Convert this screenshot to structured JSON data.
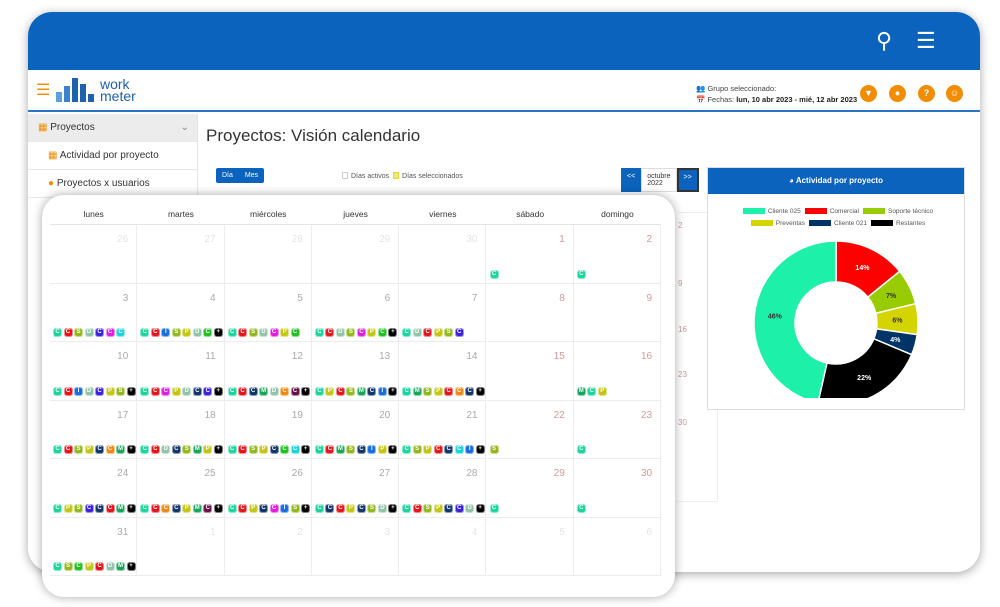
{
  "topbar": {
    "search_icon": "search-icon",
    "menu_icon": "menu-icon"
  },
  "header": {
    "logo_line1": "work",
    "logo_line2": "meter",
    "group_label": "Grupo seleccionado:",
    "dates_label": "Fechas:",
    "dates_value": "lun, 10 abr 2023 - mié, 12 abr 2023"
  },
  "sidebar": {
    "items": [
      {
        "label": "Proyectos"
      },
      {
        "label": "Actividad por proyecto"
      },
      {
        "label": "Proyectos x usuarios"
      }
    ]
  },
  "page": {
    "title": "Proyectos: Visión calendario"
  },
  "controls": {
    "day": "Día",
    "month": "Mes",
    "active_days": "Días activos",
    "selected_days": "Días seleccionados",
    "prev": "<<",
    "month_value": "octubre 2022",
    "next": ">>"
  },
  "background_calendar": {
    "numbers": [
      "2",
      "9",
      "16",
      "23",
      "30"
    ]
  },
  "chart_data": {
    "type": "pie",
    "title": "Actividad por proyecto",
    "donut": true,
    "series": [
      {
        "name": "Comercial",
        "value": 14,
        "color": "#ff0000",
        "label": "14%"
      },
      {
        "name": "Soporte técnico",
        "value": 7,
        "color": "#99cc00",
        "label": "7%"
      },
      {
        "name": "Preventas",
        "value": 6,
        "color": "#d4d400",
        "label": "6%"
      },
      {
        "name": "Cliente 021",
        "value": 4,
        "color": "#003366",
        "label": "4%"
      },
      {
        "name": "Restantes",
        "value": 22,
        "color": "#000000",
        "label": "22%"
      },
      {
        "name": "Cliente 025",
        "value": 46,
        "color": "#1df0a8",
        "label": "46%"
      }
    ],
    "legend_order": [
      "Cliente 025",
      "Comercial",
      "Soporte técnico",
      "Preventas",
      "Cliente 021",
      "Restantes"
    ],
    "legend_placement": "top"
  },
  "calendar": {
    "weekdays": [
      "lunes",
      "martes",
      "miércoles",
      "jueves",
      "viernes",
      "sábado",
      "domingo"
    ],
    "colors": {
      "t": "#19d69c",
      "r": "#e8141c",
      "s": "#93b81c",
      "d": "#8fc4a8",
      "b": "#3a22e0",
      "m": "#e21ce0",
      "c": "#19d4e0",
      "i": "#1a6fe0",
      "y": "#c3c612",
      "n": "#13376b",
      "g": "#22c022",
      "k": "#000000",
      "o": "#f08a14",
      "w": "#17a65a",
      "v": "#6a1046"
    },
    "weeks": [
      [
        {
          "d": "26",
          "o": 1
        },
        {
          "d": "27",
          "o": 1
        },
        {
          "d": "28",
          "o": 1
        },
        {
          "d": "29",
          "o": 1
        },
        {
          "d": "30",
          "o": 1
        },
        {
          "d": "1",
          "w": 1,
          "b": "C:t"
        },
        {
          "d": "2",
          "w": 1,
          "b": "C:t"
        }
      ],
      [
        {
          "d": "3",
          "b": "C:t C:r S:s D:d C:b C:m C:c"
        },
        {
          "d": "4",
          "b": "C:t C:r I:i S:s P:y D:d C:g +:k"
        },
        {
          "d": "5",
          "b": "C:t C:r S:s D:d C:m P:y C:g"
        },
        {
          "d": "6",
          "b": "C:t C:r D:d S:s C:m P:y C:g +:k"
        },
        {
          "d": "7",
          "b": "C:t D:d C:r P:y S:s C:b"
        },
        {
          "d": "8",
          "w": 1
        },
        {
          "d": "9",
          "w": 1
        }
      ],
      [
        {
          "d": "10",
          "b": "C:t C:r I:i D:d C:b P:y S:s +:k"
        },
        {
          "d": "11",
          "b": "C:t C:r C:m P:y D:d C:n C:b +:k"
        },
        {
          "d": "12",
          "b": "C:t C:r C:n M:w D:d C:o C:v +:k"
        },
        {
          "d": "13",
          "b": "C:t P:y C:r S:s M:w C:n I:i +:k"
        },
        {
          "d": "14",
          "b": "C:t M:w S:s P:y C:r C:o C:n +:k"
        },
        {
          "d": "15",
          "w": 1
        },
        {
          "d": "16",
          "w": 1,
          "b": "M:w C:t P:y"
        }
      ],
      [
        {
          "d": "17",
          "b": "C:t C:r S:s P:y C:n C:o M:w +:k"
        },
        {
          "d": "18",
          "b": "C:t C:r D:d C:n S:s M:w P:y +:k"
        },
        {
          "d": "19",
          "b": "C:t C:r S:s P:y C:n C:g C:c +:k"
        },
        {
          "d": "20",
          "b": "C:t C:r M:w S:s C:n I:i P:y +:k"
        },
        {
          "d": "21",
          "b": "C:t S:s P:y C:r C:n C:c I:i +:k"
        },
        {
          "d": "22",
          "w": 1,
          "b": "S:s"
        },
        {
          "d": "23",
          "w": 1,
          "b": "C:t"
        }
      ],
      [
        {
          "d": "24",
          "b": "C:t P:y S:s C:b C:n C:r M:w +:k"
        },
        {
          "d": "25",
          "b": "C:t C:r C:o C:n P:y M:w C:v +:k"
        },
        {
          "d": "26",
          "b": "C:t C:r P:y C:n C:m I:i S:s +:k"
        },
        {
          "d": "27",
          "b": "C:t C:n C:r P:y C:n S:s D:d +:k"
        },
        {
          "d": "28",
          "b": "C:t C:r S:s P:y C:n C:b D:d +:k"
        },
        {
          "d": "29",
          "w": 1,
          "b": "C:t"
        },
        {
          "d": "30",
          "w": 1,
          "b": "C:t"
        }
      ],
      [
        {
          "d": "31",
          "b": "C:t S:s C:g P:y C:r D:d M:w +:k"
        },
        {
          "d": "1",
          "o": 1
        },
        {
          "d": "2",
          "o": 1
        },
        {
          "d": "3",
          "o": 1
        },
        {
          "d": "4",
          "o": 1
        },
        {
          "d": "5",
          "o": 1
        },
        {
          "d": "6",
          "o": 1
        }
      ]
    ]
  }
}
